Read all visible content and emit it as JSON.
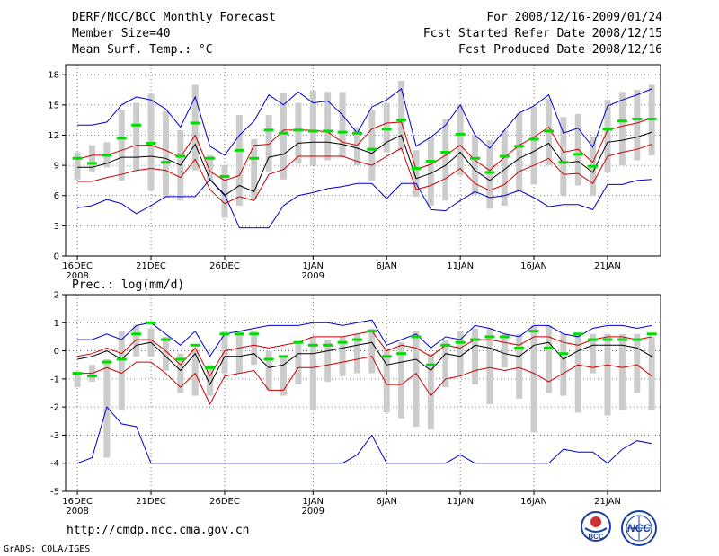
{
  "header": {
    "title": "DERF/NCC/BCC Monthly Forecast",
    "member_size": "Member Size=40",
    "variable": "Mean Surf. Temp.: °C",
    "period": "For 2008/12/16-2009/01/24",
    "fcst_started": "Fcst Started Refer Date 2008/12/15",
    "fcst_produced": "Fcst Produced Date 2008/12/16"
  },
  "footer": {
    "url": "http://cmdp.ncc.cma.gov.cn",
    "grads": "GrADS: COLA/IGES",
    "logo_bcc": "BCC",
    "logo_ncc": "NCC"
  },
  "colors": {
    "max_min": "#0000cc",
    "ens_mean": "#000000",
    "spread": "#cc0000",
    "box": "#cccccc",
    "obs": "#00dd00"
  },
  "x_ticks": [
    "16DEC",
    "21DEC",
    "26DEC",
    "1JAN",
    "6JAN",
    "11JAN",
    "16JAN",
    "21JAN"
  ],
  "x_tick_days": [
    0,
    5,
    10,
    16,
    21,
    26,
    31,
    36
  ],
  "x_year_labels": [
    {
      "day": 0,
      "text": "2008"
    },
    {
      "day": 16,
      "text": "2009"
    }
  ],
  "chart_data": [
    {
      "type": "line",
      "title": "Mean Surf. Temp.: °C",
      "ylim": [
        0,
        19
      ],
      "yticks": [
        0,
        3,
        6,
        9,
        12,
        15,
        18
      ],
      "xlim": [
        -0.8,
        39.6
      ],
      "x": [
        0,
        1,
        2,
        3,
        4,
        5,
        6,
        7,
        8,
        9,
        10,
        11,
        12,
        13,
        14,
        15,
        16,
        17,
        18,
        19,
        20,
        21,
        22,
        23,
        24,
        25,
        26,
        27,
        28,
        29,
        30,
        31,
        32,
        33,
        34,
        35,
        36,
        37,
        38,
        39
      ],
      "series": [
        {
          "name": "max",
          "color": "#0000cc",
          "values": [
            13,
            13,
            13.3,
            15,
            15.8,
            15.5,
            14.6,
            12.8,
            15.8,
            10.9,
            10,
            12,
            13.4,
            16,
            15,
            16.3,
            15.2,
            15.4,
            14,
            12.2,
            14.8,
            15.5,
            16.6,
            10.9,
            11.8,
            13,
            15,
            12,
            10.7,
            12.5,
            14.2,
            14.9,
            16,
            12.2,
            12.7,
            10.8,
            14.9,
            15.5,
            16,
            16.6
          ]
        },
        {
          "name": "spread_upper",
          "color": "#cc0000",
          "values": [
            9.6,
            10,
            10,
            10.5,
            11,
            11,
            10.5,
            9.8,
            12,
            8.4,
            7.5,
            8,
            11,
            11.1,
            12.5,
            12.5,
            12.5,
            12.3,
            11.3,
            11,
            12.6,
            13.2,
            13.3,
            8.6,
            9.1,
            10,
            11,
            9.5,
            8.5,
            9.8,
            11,
            11.8,
            12.8,
            10.3,
            10.6,
            9.3,
            12.5,
            12.9,
            13.2,
            13.7
          ]
        },
        {
          "name": "mean",
          "color": "#000000",
          "values": [
            8.8,
            8.8,
            9.2,
            9.8,
            9.8,
            9.9,
            9.7,
            9,
            11.1,
            7.6,
            6,
            7,
            6.4,
            9.8,
            10.1,
            11.2,
            11.3,
            11.3,
            11.1,
            10.7,
            10.2,
            11.3,
            12,
            7.7,
            8.2,
            9,
            10.3,
            8.5,
            7.5,
            8.6,
            9.7,
            10.4,
            11.2,
            9.2,
            9.4,
            8.3,
            11.3,
            11.5,
            11.8,
            12.3
          ]
        },
        {
          "name": "spread_lower",
          "color": "#cc0000",
          "values": [
            7.4,
            7.4,
            7.8,
            8.1,
            8.5,
            8.7,
            8.5,
            7.8,
            9.6,
            6.6,
            5.2,
            5.9,
            5.5,
            8.1,
            8.6,
            9.9,
            9.9,
            9.9,
            9.9,
            9.4,
            9,
            9.9,
            10.7,
            6.6,
            7,
            7.7,
            8.7,
            7.2,
            6.5,
            7.1,
            8.4,
            9,
            9.7,
            8.1,
            8.2,
            7.2,
            9.9,
            10.3,
            10.6,
            11.1
          ]
        },
        {
          "name": "min",
          "color": "#0000cc",
          "values": [
            4.8,
            5,
            5.6,
            5.2,
            4.2,
            5,
            5.9,
            5.9,
            5.9,
            7.6,
            6.1,
            2.8,
            2.8,
            2.8,
            5,
            6,
            6.3,
            6.7,
            6.9,
            7.2,
            7.2,
            5.7,
            7.2,
            7.2,
            4.6,
            4.5,
            5.5,
            6.4,
            5.8,
            6,
            6.5,
            5.8,
            4.9,
            5.1,
            5.1,
            4.6,
            7.1,
            7.1,
            7.5,
            7.6
          ]
        },
        {
          "name": "box_top",
          "color": "#cccccc",
          "values": [
            10.3,
            11,
            11.3,
            14.5,
            15.2,
            16.1,
            14.4,
            12.5,
            17,
            10,
            9,
            14,
            11.6,
            14,
            16.2,
            15.2,
            16.4,
            16.3,
            16.3,
            12.8,
            14.5,
            15.2,
            17.4,
            10.5,
            11.8,
            13.6,
            14.9,
            12,
            11.5,
            12.5,
            14.2,
            14.8,
            15.6,
            13.8,
            14.1,
            11.8,
            15.5,
            16.3,
            16.5,
            17
          ]
        },
        {
          "name": "box_bottom",
          "color": "#cccccc",
          "values": [
            7.6,
            8.4,
            8.8,
            7.5,
            8.5,
            6.5,
            5.8,
            5.5,
            8.5,
            7.5,
            3.8,
            5,
            5.6,
            8.4,
            7.6,
            9.2,
            9,
            9.5,
            9.8,
            9,
            7.5,
            10.3,
            10.5,
            5.9,
            5,
            5.5,
            8,
            6.1,
            4.7,
            5,
            6.5,
            7.1,
            9,
            6,
            7,
            6,
            8.3,
            9,
            9.5,
            10
          ]
        },
        {
          "name": "obs",
          "color": "#00dd00",
          "values": [
            9.7,
            9.2,
            10,
            11.7,
            13,
            11.2,
            9.3,
            9.9,
            13.2,
            9.7,
            7.9,
            10.5,
            9.7,
            12.5,
            12.2,
            12.5,
            12.4,
            12.4,
            12.3,
            12.2,
            10.6,
            12.6,
            13.5,
            8.7,
            9.4,
            10.3,
            12.1,
            9.7,
            8.3,
            9.9,
            10.9,
            11.6,
            12.4,
            9.3,
            10.1,
            8.9,
            12.6,
            13.4,
            13.6,
            13.6
          ]
        }
      ]
    },
    {
      "type": "line",
      "title": "Prec.: log(mm/d)",
      "ylim": [
        -5,
        2
      ],
      "yticks": [
        -5,
        -4,
        -3,
        -2,
        -1,
        0,
        1,
        2
      ],
      "xlim": [
        -0.8,
        39.6
      ],
      "x": [
        0,
        1,
        2,
        3,
        4,
        5,
        6,
        7,
        8,
        9,
        10,
        11,
        12,
        13,
        14,
        15,
        16,
        17,
        18,
        19,
        20,
        21,
        22,
        23,
        24,
        25,
        26,
        27,
        28,
        29,
        30,
        31,
        32,
        33,
        34,
        35,
        36,
        37,
        38,
        39
      ],
      "series": [
        {
          "name": "max",
          "color": "#0000cc",
          "values": [
            0.4,
            0.4,
            0.6,
            0.4,
            0.9,
            1,
            0.6,
            0.2,
            0.7,
            -0.2,
            0.6,
            0.7,
            0.8,
            0.9,
            0.9,
            0.9,
            1,
            1,
            0.9,
            1,
            1.1,
            0.2,
            0.4,
            0.6,
            0.1,
            0.5,
            0.4,
            0.9,
            0.8,
            0.6,
            0.5,
            0.9,
            0.9,
            0.6,
            0.5,
            0.8,
            0.9,
            0.9,
            0.8,
            0.9
          ]
        },
        {
          "name": "spread_upper",
          "color": "#cc0000",
          "values": [
            -0.2,
            -0.1,
            0.1,
            -0.1,
            0.4,
            0.4,
            0,
            -0.5,
            0.1,
            -0.9,
            0,
            0.1,
            0.2,
            0.1,
            0.2,
            0.3,
            0.5,
            0.5,
            0.5,
            0.6,
            0.7,
            0,
            0.2,
            0.1,
            -0.2,
            0.2,
            0.1,
            0.4,
            0.4,
            0.3,
            0.2,
            0.5,
            0.5,
            0.3,
            0.2,
            0.4,
            0.5,
            0.5,
            0.4,
            0.5
          ]
        },
        {
          "name": "mean",
          "color": "#000000",
          "values": [
            -0.3,
            -0.2,
            0,
            -0.3,
            0.2,
            0.3,
            -0.2,
            -0.7,
            -0.1,
            -1.2,
            -0.2,
            -0.2,
            -0.1,
            -0.6,
            -0.5,
            -0.1,
            -0.1,
            0,
            0.1,
            0.2,
            0.3,
            -0.5,
            -0.4,
            -0.3,
            -0.7,
            -0.1,
            -0.2,
            0.2,
            0.1,
            -0.1,
            -0.2,
            0.2,
            0.3,
            -0.3,
            0,
            0.2,
            0.2,
            0.2,
            0.1,
            -0.2
          ]
        },
        {
          "name": "spread_lower",
          "color": "#cc0000",
          "values": [
            -0.8,
            -0.8,
            -0.6,
            -0.8,
            -0.4,
            -0.4,
            -0.8,
            -1.3,
            -0.8,
            -1.9,
            -0.9,
            -0.8,
            -0.7,
            -1.4,
            -1.4,
            -0.6,
            -0.6,
            -0.5,
            -0.4,
            -0.3,
            -0.2,
            -1.2,
            -1.2,
            -0.8,
            -1.6,
            -1,
            -0.9,
            -0.7,
            -0.6,
            -0.7,
            -0.6,
            -0.8,
            -1.1,
            -0.8,
            -0.5,
            -0.6,
            -0.5,
            -0.6,
            -0.5,
            -0.9
          ]
        },
        {
          "name": "min",
          "color": "#0000cc",
          "values": [
            -4,
            -3.8,
            -2,
            -2.6,
            -2.7,
            -4,
            -4,
            -4,
            -4,
            -4,
            -4,
            -4,
            -4,
            -4,
            -4,
            -4,
            -4,
            -4,
            -4,
            -3.7,
            -3,
            -4,
            -4,
            -4,
            -4,
            -4,
            -3.7,
            -4,
            -4,
            -4,
            -4,
            -4,
            -4,
            -3.5,
            -3.6,
            -3.6,
            -4,
            -3.5,
            -3.2,
            -3.3
          ]
        },
        {
          "name": "box_top",
          "color": "#cccccc",
          "values": [
            -0.8,
            -0.5,
            -0.3,
            0.7,
            0.9,
            0.8,
            0.5,
            -0.1,
            0.1,
            -0.5,
            0.7,
            0.7,
            0.7,
            0,
            -0.2,
            0.3,
            0.5,
            0.4,
            0.5,
            0.6,
            0.8,
            0.1,
            0.3,
            0.7,
            -0.1,
            0.4,
            0.7,
            0.8,
            0.8,
            0.6,
            0.6,
            0.9,
            0.9,
            0.6,
            0.6,
            0.6,
            0.6,
            0.6,
            0.6,
            0.5
          ]
        },
        {
          "name": "box_bottom",
          "color": "#cccccc",
          "values": [
            -1.3,
            -1.1,
            -3.8,
            -2.1,
            -0.2,
            -0.2,
            -0.7,
            -1.5,
            -1.6,
            -1.6,
            -0.8,
            -0.8,
            -0.5,
            -1.4,
            -1.6,
            -1.2,
            -2.1,
            -1.1,
            -0.9,
            -0.8,
            -0.8,
            -2.2,
            -2.4,
            -2.7,
            -2.8,
            -1.3,
            -0.9,
            -1.2,
            -1.9,
            -0.6,
            -1.7,
            -2.9,
            -1.5,
            -1.6,
            -2.2,
            -0.8,
            -2.3,
            -2.1,
            -1.5,
            -2.1
          ]
        },
        {
          "name": "obs",
          "color": "#00dd00",
          "values": [
            -0.8,
            -0.9,
            -0.4,
            -0.3,
            0.6,
            1,
            0.4,
            -0.3,
            0.2,
            -0.6,
            0.6,
            0.6,
            0.6,
            -0.3,
            -0.2,
            0.3,
            0.2,
            0.2,
            0.3,
            0.4,
            0.7,
            -0.2,
            -0.1,
            0.5,
            -0.5,
            0.2,
            0.3,
            0.4,
            0.5,
            0.5,
            0.1,
            0.7,
            0.1,
            -0.1,
            0.6,
            0.4,
            0.4,
            0.4,
            0.4,
            0.6
          ]
        }
      ]
    }
  ]
}
